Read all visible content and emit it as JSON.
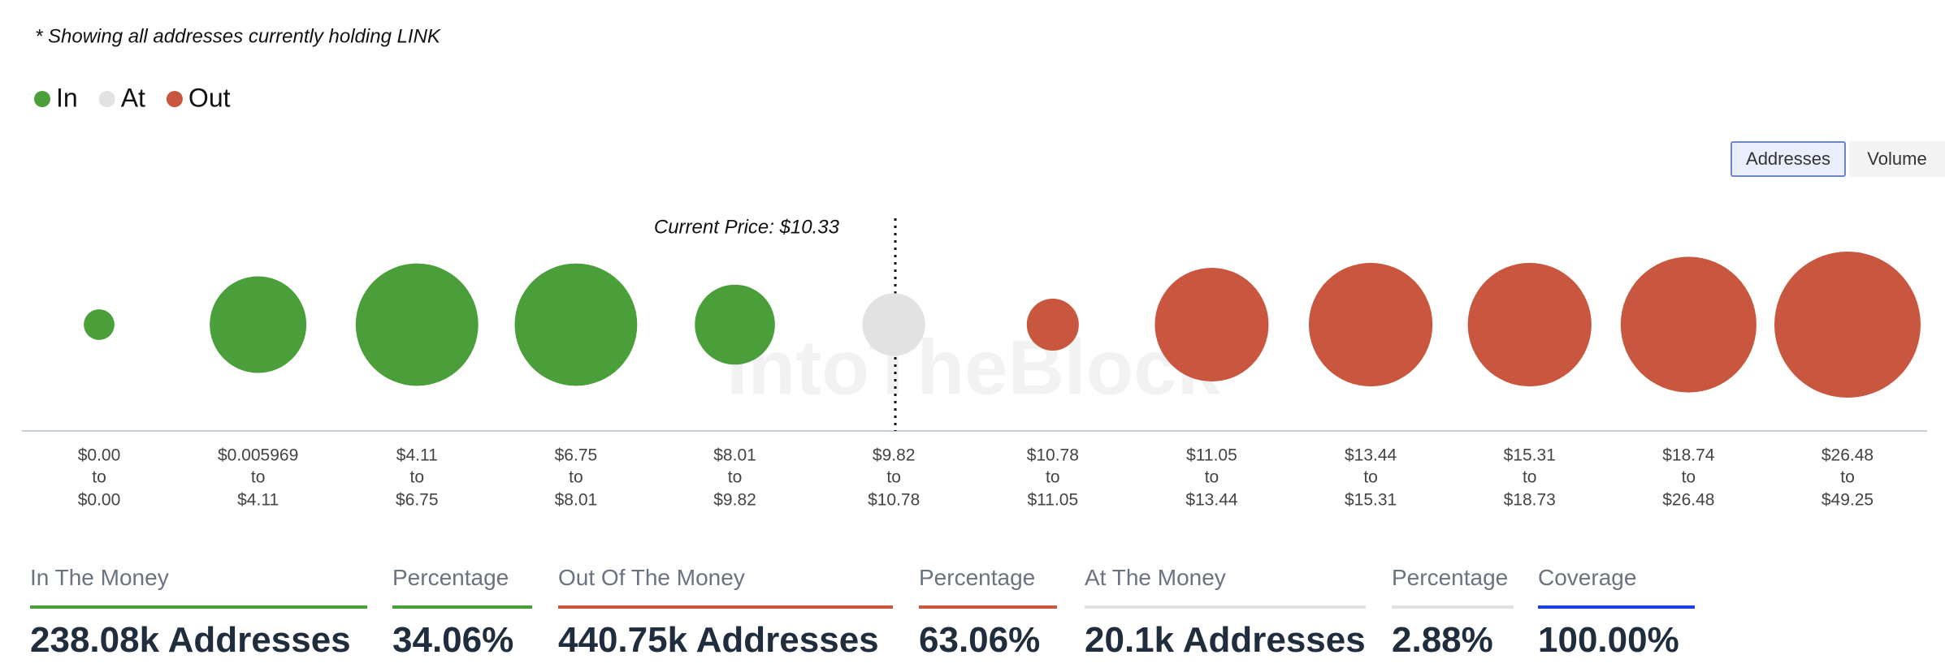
{
  "note": "* Showing all addresses currently holding LINK",
  "buttons": [
    "Addresses",
    "Volume"
  ],
  "chart_data": {
    "type": "bubble",
    "annotation": "Current Price: $10.33",
    "watermark": "IntoTheBlock",
    "range_joiner": "to",
    "categories": [
      {
        "from": "$0.00",
        "to": "$0.00"
      },
      {
        "from": "$0.005969",
        "to": "$4.11"
      },
      {
        "from": "$4.11",
        "to": "$6.75"
      },
      {
        "from": "$6.75",
        "to": "$8.01"
      },
      {
        "from": "$8.01",
        "to": "$9.82"
      },
      {
        "from": "$9.82",
        "to": "$10.78"
      },
      {
        "from": "$10.78",
        "to": "$11.05"
      },
      {
        "from": "$11.05",
        "to": "$13.44"
      },
      {
        "from": "$13.44",
        "to": "$15.31"
      },
      {
        "from": "$15.31",
        "to": "$18.73"
      },
      {
        "from": "$18.74",
        "to": "$26.48"
      },
      {
        "from": "$26.48",
        "to": "$49.25"
      }
    ],
    "series": [
      {
        "name": "In",
        "color": "#4a9f3a",
        "values": [
          4800,
          47600,
          76500,
          76500,
          32700,
          null,
          null,
          null,
          null,
          null,
          null,
          null
        ]
      },
      {
        "name": "At",
        "color": "#e2e2e2",
        "values": [
          null,
          null,
          null,
          null,
          null,
          20100,
          null,
          null,
          null,
          null,
          null,
          null
        ]
      },
      {
        "name": "Out",
        "color": "#c9573f",
        "values": [
          null,
          null,
          null,
          null,
          null,
          null,
          13800,
          66000,
          78000,
          78000,
          94000,
          109000
        ]
      }
    ]
  },
  "summary": [
    {
      "label": "In The Money",
      "value": "238.08k Addresses",
      "color": "#4a9f3a"
    },
    {
      "label": "Percentage",
      "value": "34.06%",
      "color": "#4a9f3a"
    },
    {
      "label": "Out Of The Money",
      "value": "440.75k Addresses",
      "color": "#c9573f"
    },
    {
      "label": "Percentage",
      "value": "63.06%",
      "color": "#c9573f"
    },
    {
      "label": "At The Money",
      "value": "20.1k Addresses",
      "color": "#e0e0e0"
    },
    {
      "label": "Percentage",
      "value": "2.88%",
      "color": "#e0e0e0"
    },
    {
      "label": "Coverage",
      "value": "100.00%",
      "color": "#1f3ee0"
    }
  ]
}
